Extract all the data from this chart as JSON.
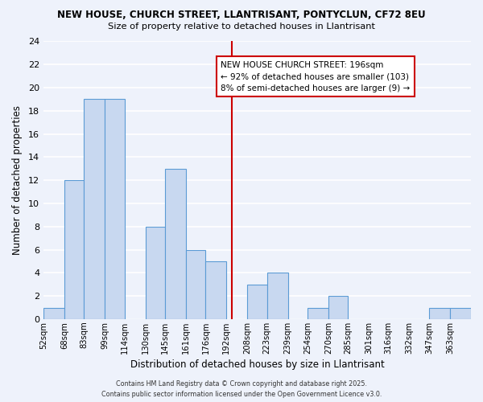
{
  "title_line1": "NEW HOUSE, CHURCH STREET, LLANTRISANT, PONTYCLUN, CF72 8EU",
  "title_line2": "Size of property relative to detached houses in Llantrisant",
  "xlabel": "Distribution of detached houses by size in Llantrisant",
  "ylabel": "Number of detached properties",
  "bin_labels": [
    "52sqm",
    "68sqm",
    "83sqm",
    "99sqm",
    "114sqm",
    "130sqm",
    "145sqm",
    "161sqm",
    "176sqm",
    "192sqm",
    "208sqm",
    "223sqm",
    "239sqm",
    "254sqm",
    "270sqm",
    "285sqm",
    "301sqm",
    "316sqm",
    "332sqm",
    "347sqm",
    "363sqm"
  ],
  "bar_heights": [
    1,
    12,
    19,
    19,
    0,
    8,
    13,
    6,
    5,
    0,
    3,
    4,
    0,
    1,
    2,
    0,
    0,
    0,
    0,
    1,
    1
  ],
  "bin_edges": [
    52,
    68,
    83,
    99,
    114,
    130,
    145,
    161,
    176,
    192,
    208,
    223,
    239,
    254,
    270,
    285,
    301,
    316,
    332,
    347,
    363,
    379
  ],
  "bar_color": "#c8d8f0",
  "bar_edge_color": "#5b9bd5",
  "vline_x": 196,
  "vline_color": "#cc0000",
  "ylim": [
    0,
    24
  ],
  "yticks": [
    0,
    2,
    4,
    6,
    8,
    10,
    12,
    14,
    16,
    18,
    20,
    22,
    24
  ],
  "annotation_title": "NEW HOUSE CHURCH STREET: 196sqm",
  "annotation_line1": "← 92% of detached houses are smaller (103)",
  "annotation_line2": "8% of semi-detached houses are larger (9) →",
  "annotation_box_color": "#ffffff",
  "annotation_box_edge": "#cc0000",
  "footer_line1": "Contains HM Land Registry data © Crown copyright and database right 2025.",
  "footer_line2": "Contains public sector information licensed under the Open Government Licence v3.0.",
  "background_color": "#eef2fb",
  "grid_color": "#ffffff"
}
